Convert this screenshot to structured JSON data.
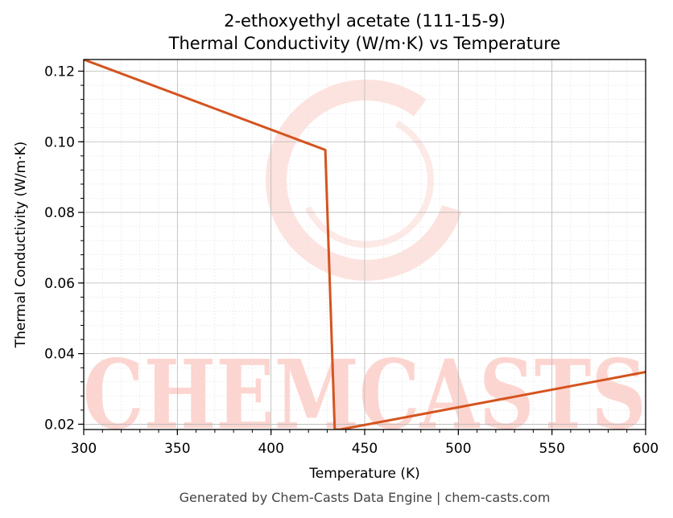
{
  "chart_data": {
    "type": "line",
    "title": "2-ethoxyethyl acetate (111-15-9)",
    "subtitle": "Thermal Conductivity (W/m·K) vs Temperature",
    "xlabel": "Temperature (K)",
    "ylabel": "Thermal Conductivity (W/m·K)",
    "xlim": [
      300,
      600
    ],
    "ylim": [
      0.0185,
      0.1233
    ],
    "xticks": [
      "300",
      "350",
      "400",
      "450",
      "500",
      "550",
      "600"
    ],
    "yticks": [
      "0.02",
      "0.04",
      "0.06",
      "0.08",
      "0.10",
      "0.12"
    ],
    "grid": true,
    "series": [
      {
        "color": "#d4541e",
        "x": [
          300,
          429,
          434,
          437,
          600
        ],
        "y": [
          0.1233,
          0.0977,
          0.0185,
          0.0185,
          0.0348
        ]
      }
    ]
  },
  "watermark": {
    "text": "CHEMCASTS",
    "color": "#fdd5d0"
  },
  "footer": "Generated by Chem-Casts Data Engine | chem-casts.com"
}
